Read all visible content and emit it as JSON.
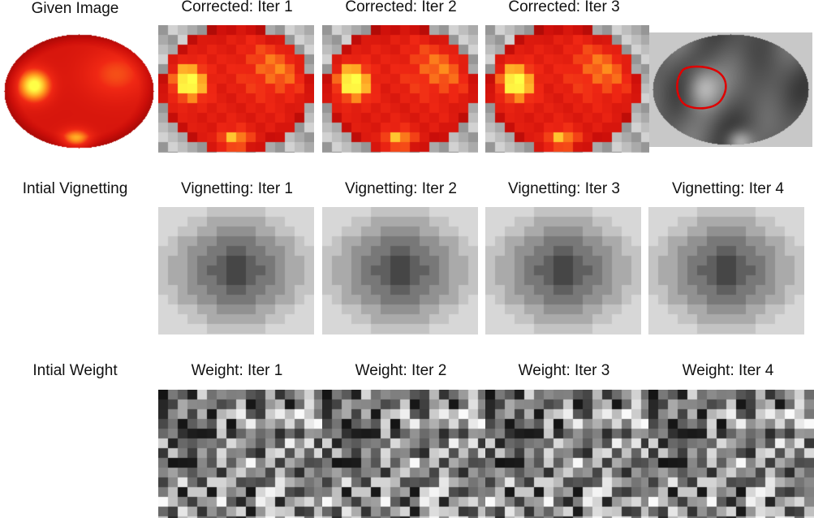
{
  "rows": [
    {
      "id": "image",
      "labels": [
        "Given Image",
        "Corrected: Iter 1",
        "Corrected: Iter 2",
        "Corrected: Iter 3",
        ""
      ],
      "panel_types": [
        "smooth-heat",
        "pixel-heat",
        "pixel-heat",
        "pixel-heat",
        "grayscale-contour"
      ]
    },
    {
      "id": "vignetting",
      "labels": [
        "Intial Vignetting",
        "Vignetting: Iter 1",
        "Vignetting: Iter 2",
        "Vignetting: Iter 3",
        "Vignetting: Iter 4"
      ],
      "panel_types": [
        "none",
        "vignette",
        "vignette",
        "vignette",
        "vignette"
      ]
    },
    {
      "id": "weight",
      "labels": [
        "Intial Weight",
        "Weight: Iter 1",
        "Weight: Iter 2",
        "Weight: Iter 3",
        "Weight: Iter 4"
      ],
      "panel_types": [
        "none",
        "weight",
        "weight",
        "weight",
        "weight"
      ]
    }
  ],
  "colors": {
    "heat_dark": "#7a0000",
    "heat_red": "#e11414",
    "heat_yellow": "#ffff3a",
    "contour": "#e00000",
    "background_gray": "#c8c8c8"
  }
}
